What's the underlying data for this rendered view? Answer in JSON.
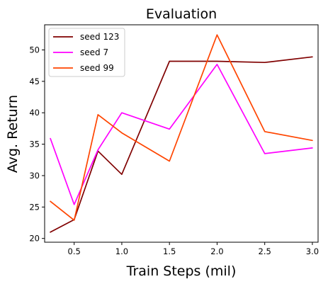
{
  "chart_data": {
    "type": "line",
    "title": "Evaluation",
    "xlabel": "Train Steps (mil)",
    "ylabel": "Avg. Return",
    "xlim": [
      0.19,
      3.06
    ],
    "ylim": [
      19.4,
      54.0
    ],
    "x_ticks": [
      0.5,
      1.0,
      1.5,
      2.0,
      2.5,
      3.0
    ],
    "x_tick_labels": [
      "0.5",
      "1.0",
      "1.5",
      "2.0",
      "2.5",
      "3.0"
    ],
    "y_ticks": [
      20,
      25,
      30,
      35,
      40,
      45,
      50
    ],
    "y_tick_labels": [
      "20",
      "25",
      "30",
      "35",
      "40",
      "45",
      "50"
    ],
    "grid": false,
    "legend_position": "top-left",
    "x": [
      0.25,
      0.5,
      0.75,
      1.0,
      1.5,
      2.0,
      2.5,
      3.0
    ],
    "series": [
      {
        "name": "seed 123",
        "color": "#800000",
        "values": [
          21.0,
          23.0,
          33.9,
          30.2,
          48.2,
          48.2,
          48.0,
          48.9
        ]
      },
      {
        "name": "seed 7",
        "color": "#ff00ff",
        "values": [
          35.9,
          25.4,
          34.1,
          40.0,
          37.4,
          47.7,
          33.5,
          34.4
        ]
      },
      {
        "name": "seed 99",
        "color": "#ff4500",
        "values": [
          25.9,
          22.9,
          39.7,
          36.8,
          32.3,
          52.4,
          37.0,
          35.6
        ]
      }
    ]
  }
}
